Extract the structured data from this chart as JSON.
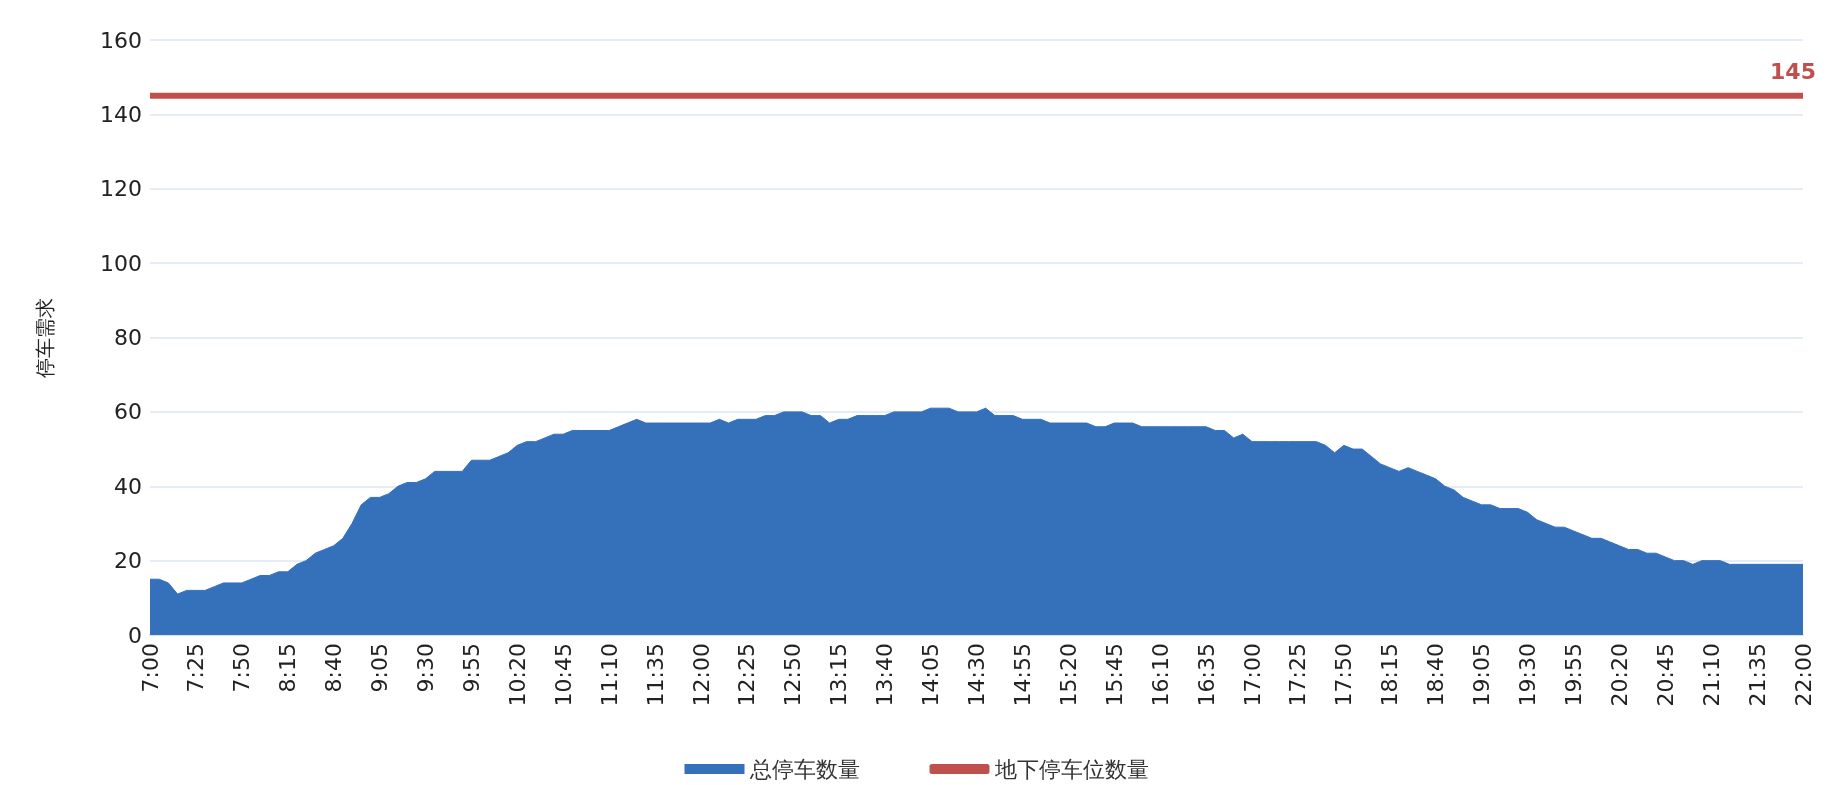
{
  "chart_data": {
    "type": "area",
    "ylabel": "停车需求",
    "ylim": [
      0,
      160
    ],
    "yticks": [
      0,
      20,
      40,
      60,
      80,
      100,
      120,
      140,
      160
    ],
    "grid": "y",
    "legend": "bottom",
    "marker": "none",
    "categories": [
      "7:00",
      null,
      null,
      null,
      null,
      "7:25",
      null,
      null,
      null,
      null,
      "7:50",
      null,
      null,
      null,
      null,
      "8:15",
      null,
      null,
      null,
      null,
      "8:40",
      null,
      null,
      null,
      null,
      "9:05",
      null,
      null,
      null,
      null,
      "9:30",
      null,
      null,
      null,
      null,
      "9:55",
      null,
      null,
      null,
      null,
      "10:20",
      null,
      null,
      null,
      null,
      "10:45",
      null,
      null,
      null,
      null,
      "11:10",
      null,
      null,
      null,
      null,
      "11:35",
      null,
      null,
      null,
      null,
      "12:00",
      null,
      null,
      null,
      null,
      "12:25",
      null,
      null,
      null,
      null,
      "12:50",
      null,
      null,
      null,
      null,
      "13:15",
      null,
      null,
      null,
      null,
      "13:40",
      null,
      null,
      null,
      null,
      "14:05",
      null,
      null,
      null,
      null,
      "14:30",
      null,
      null,
      null,
      null,
      "14:55",
      null,
      null,
      null,
      null,
      "15:20",
      null,
      null,
      null,
      null,
      "15:45",
      null,
      null,
      null,
      null,
      "16:10",
      null,
      null,
      null,
      null,
      "16:35",
      null,
      null,
      null,
      null,
      "17:00",
      null,
      null,
      null,
      null,
      "17:25",
      null,
      null,
      null,
      null,
      "17:50",
      null,
      null,
      null,
      null,
      "18:15",
      null,
      null,
      null,
      null,
      "18:40",
      null,
      null,
      null,
      null,
      "19:05",
      null,
      null,
      null,
      null,
      "19:30",
      null,
      null,
      null,
      null,
      "19:55",
      null,
      null,
      null,
      null,
      "20:20",
      null,
      null,
      null,
      null,
      "20:45",
      null,
      null,
      null,
      null,
      "21:10",
      null,
      null,
      null,
      null,
      "21:35",
      null,
      null,
      null,
      null,
      "22:00"
    ],
    "series": [
      {
        "name": "总停车数量",
        "color": "#3570bb",
        "values": [
          15,
          15,
          14,
          11,
          12,
          12,
          12,
          13,
          14,
          14,
          14,
          15,
          16,
          16,
          17,
          17,
          19,
          20,
          22,
          23,
          24,
          26,
          30,
          35,
          37,
          37,
          38,
          40,
          41,
          41,
          42,
          44,
          44,
          44,
          44,
          47,
          47,
          47,
          48,
          49,
          51,
          52,
          52,
          53,
          54,
          54,
          55,
          55,
          55,
          55,
          55,
          56,
          57,
          58,
          57,
          57,
          57,
          57,
          57,
          57,
          57,
          57,
          58,
          57,
          58,
          58,
          58,
          59,
          59,
          60,
          60,
          60,
          59,
          59,
          57,
          58,
          58,
          59,
          59,
          59,
          59,
          60,
          60,
          60,
          60,
          61,
          61,
          61,
          60,
          60,
          60,
          61,
          59,
          59,
          59,
          58,
          58,
          58,
          57,
          57,
          57,
          57,
          57,
          56,
          56,
          57,
          57,
          57,
          56,
          56,
          56,
          56,
          56,
          56,
          56,
          56,
          55,
          55,
          53,
          54,
          52,
          52,
          52,
          52,
          52,
          52,
          52,
          52,
          51,
          49,
          51,
          50,
          50,
          48,
          46,
          45,
          44,
          45,
          44,
          43,
          42,
          40,
          39,
          37,
          36,
          35,
          35,
          34,
          34,
          34,
          33,
          31,
          30,
          29,
          29,
          28,
          27,
          26,
          26,
          25,
          24,
          23,
          23,
          22,
          22,
          21,
          20,
          20,
          19,
          20,
          20,
          20,
          19,
          19,
          19,
          19,
          19,
          19,
          19,
          19,
          19
        ]
      },
      {
        "name": "地下停车位数量",
        "type": "line",
        "color": "#c0504d",
        "x": [
          "7:00",
          "22:00"
        ],
        "values": [
          145,
          145
        ],
        "value_labels": [
          null,
          "145"
        ]
      }
    ]
  }
}
